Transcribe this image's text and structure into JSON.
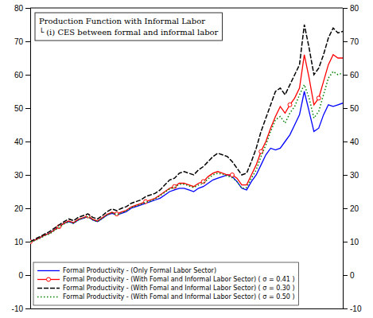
{
  "chart_data": {
    "type": "line",
    "title": "Production Function with Informal Labor",
    "subtitle": "└ (i) CES between formal and informal labor",
    "xlim": [
      0,
      65
    ],
    "ylim": [
      -10,
      80
    ],
    "yticks": [
      -10,
      0,
      10,
      20,
      30,
      40,
      50,
      60,
      70,
      80
    ],
    "y2lim": [
      -10,
      80
    ],
    "y2ticks": [
      -10,
      0,
      10,
      20,
      30,
      40,
      50,
      60,
      70,
      80
    ],
    "tick_labels": "y",
    "grid": false,
    "legend": "lower left",
    "series": [
      {
        "name": "Formal Productivity - (Only Formal Labor Sector)",
        "color": "blue",
        "line_style": "solid",
        "values": [
          10.0,
          10.5,
          11.2,
          12.0,
          12.5,
          13.5,
          14.5,
          15.5,
          16.0,
          15.5,
          16.5,
          17.0,
          17.5,
          16.5,
          16.0,
          17.0,
          18.0,
          18.5,
          18.0,
          18.5,
          19.0,
          20.0,
          20.5,
          21.0,
          21.5,
          22.0,
          22.5,
          23.0,
          24.0,
          25.0,
          25.5,
          26.0,
          26.0,
          25.5,
          25.0,
          26.0,
          26.5,
          27.5,
          28.5,
          29.0,
          29.5,
          30.0,
          29.5,
          28.0,
          26.0,
          25.5,
          28.0,
          30.0,
          33.0,
          36.0,
          38.0,
          37.5,
          38.0,
          40.0,
          42.0,
          45.0,
          48.0,
          55.0,
          49.0,
          43.0,
          44.0,
          48.0,
          51.0,
          50.5,
          51.0,
          51.5
        ]
      },
      {
        "name": "Formal Productivity - (With Fomal and Informal Labor Sector)  ( σ = 0.41 )",
        "color": "red",
        "line_style": "solid",
        "marker": "circle",
        "values": [
          10.0,
          10.5,
          11.2,
          12.0,
          12.5,
          13.5,
          14.5,
          15.5,
          16.2,
          15.7,
          16.7,
          17.2,
          17.7,
          16.7,
          16.2,
          17.2,
          18.2,
          18.8,
          18.3,
          18.9,
          19.4,
          20.4,
          20.9,
          21.4,
          22.0,
          22.5,
          23.0,
          24.0,
          25.0,
          26.0,
          26.5,
          27.5,
          27.5,
          27.0,
          26.5,
          27.5,
          28.0,
          29.5,
          30.5,
          31.0,
          30.5,
          30.0,
          30.0,
          29.0,
          27.0,
          27.0,
          30.0,
          33.0,
          37.0,
          40.0,
          44.0,
          47.5,
          50.5,
          48.5,
          51.0,
          53.0,
          56.0,
          66.0,
          59.0,
          51.0,
          53.0,
          58.0,
          63.0,
          66.0,
          65.0,
          65.0
        ]
      },
      {
        "name": "Formal Productivity - (With Fomal and Informal Labor Sector)  ( σ = 0.30 )",
        "color": "black",
        "line_style": "dashed",
        "values": [
          10.0,
          10.8,
          11.5,
          12.3,
          13.0,
          14.0,
          15.0,
          16.0,
          16.8,
          16.3,
          17.3,
          17.8,
          18.3,
          17.3,
          16.8,
          17.8,
          19.0,
          19.8,
          19.3,
          20.0,
          20.5,
          21.5,
          22.0,
          22.5,
          23.5,
          24.0,
          24.5,
          25.5,
          27.0,
          28.5,
          29.0,
          30.5,
          31.0,
          30.5,
          30.0,
          31.5,
          32.5,
          34.0,
          35.5,
          36.5,
          36.0,
          35.5,
          34.0,
          32.0,
          30.0,
          30.5,
          34.0,
          38.0,
          43.0,
          47.0,
          51.0,
          55.0,
          56.0,
          54.0,
          57.0,
          60.0,
          63.0,
          75.0,
          68.0,
          60.0,
          62.0,
          66.0,
          71.0,
          74.0,
          72.5,
          73.0
        ]
      },
      {
        "name": "Formal Productivity - (With Fomal and Informal Labor Sector)  ( σ = 0.50 )",
        "color": "green",
        "line_style": "dotted",
        "values": [
          10.0,
          10.3,
          11.0,
          11.8,
          12.3,
          13.3,
          14.3,
          15.3,
          16.0,
          15.5,
          16.5,
          17.0,
          17.5,
          16.5,
          16.0,
          17.0,
          18.0,
          18.6,
          18.1,
          18.6,
          19.2,
          20.2,
          20.7,
          21.2,
          21.8,
          22.2,
          22.8,
          23.8,
          24.8,
          25.8,
          26.2,
          27.2,
          27.2,
          26.7,
          26.2,
          27.0,
          27.5,
          28.8,
          30.0,
          30.5,
          30.2,
          29.7,
          29.2,
          28.0,
          26.0,
          26.2,
          29.0,
          31.5,
          35.5,
          39.0,
          43.0,
          46.5,
          47.5,
          45.5,
          48.5,
          50.5,
          54.0,
          57.0,
          53.0,
          47.0,
          49.0,
          54.0,
          59.0,
          61.0,
          60.0,
          60.5
        ]
      }
    ]
  }
}
